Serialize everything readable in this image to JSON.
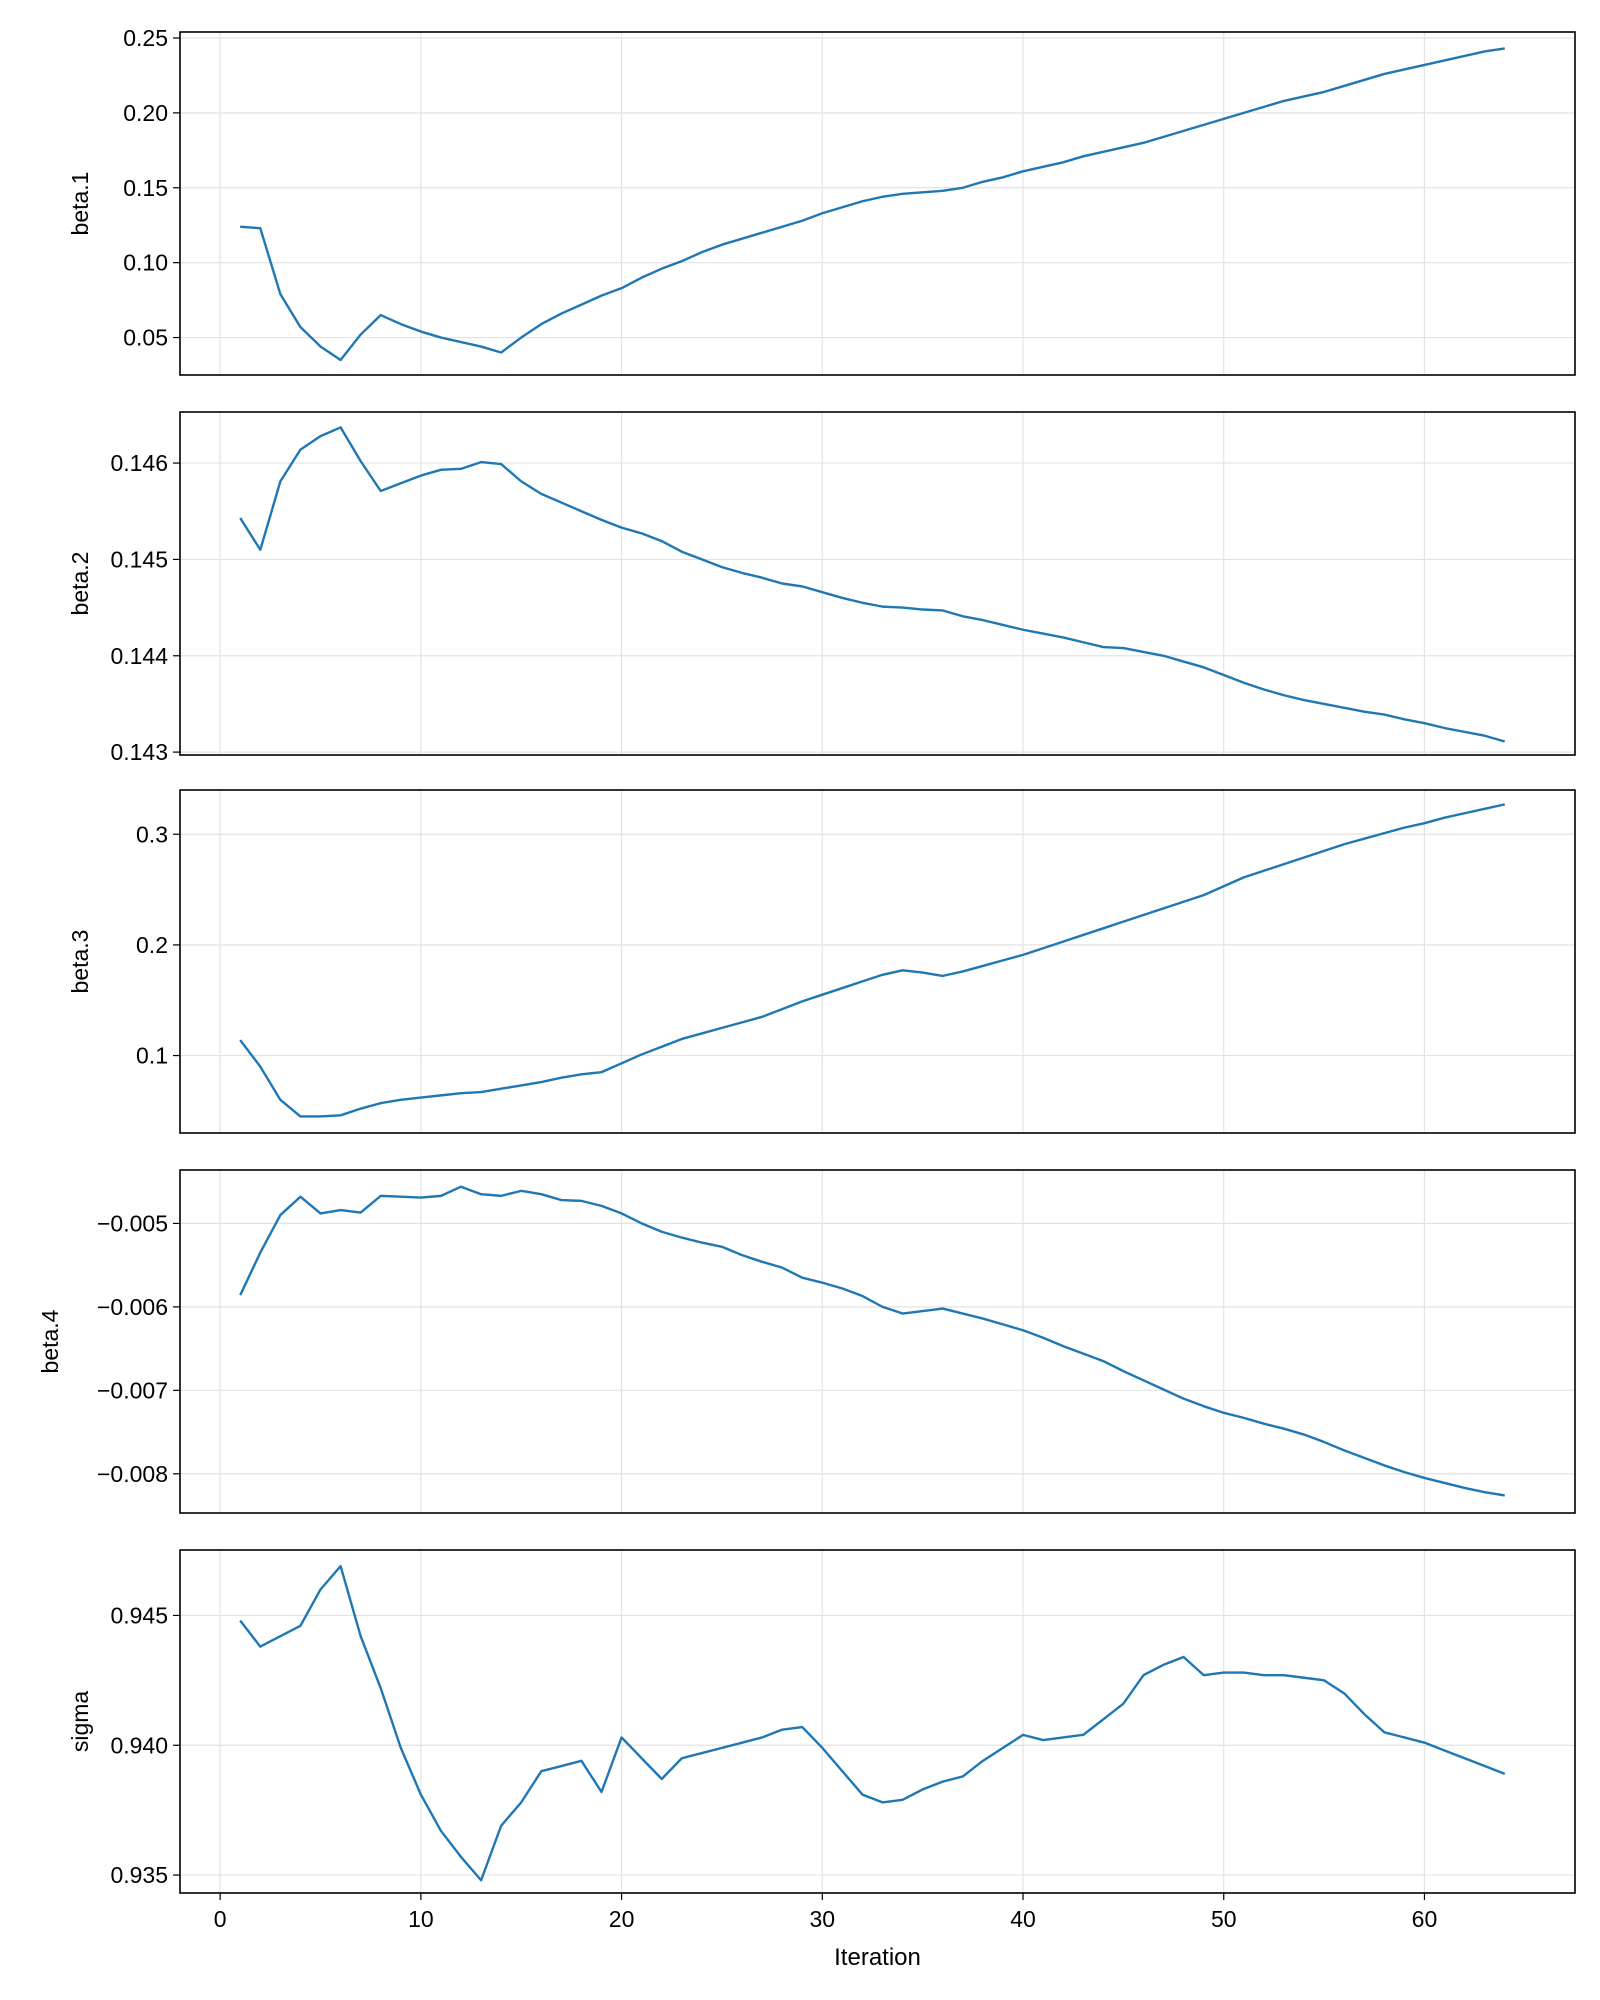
{
  "colors": {
    "line": "#1f77b4",
    "grid": "#e3e3e3",
    "frame": "#000000"
  },
  "chart_data": [
    {
      "type": "line",
      "ylabel": "beta.1",
      "xlim": [
        -2,
        67.5
      ],
      "ylim": [
        0.025,
        0.254
      ],
      "yticks": [
        0.05,
        0.1,
        0.15,
        0.2,
        0.25
      ],
      "ytick_labels": [
        "0.05",
        "0.10",
        "0.15",
        "0.20",
        "0.25"
      ],
      "series": [
        {
          "values": [
            0.124,
            0.123,
            0.079,
            0.057,
            0.044,
            0.035,
            0.052,
            0.065,
            0.059,
            0.054,
            0.05,
            0.047,
            0.044,
            0.04,
            0.05,
            0.059,
            0.066,
            0.072,
            0.078,
            0.083,
            0.09,
            0.096,
            0.101,
            0.107,
            0.112,
            0.116,
            0.12,
            0.124,
            0.128,
            0.133,
            0.137,
            0.141,
            0.144,
            0.146,
            0.147,
            0.148,
            0.15,
            0.154,
            0.157,
            0.161,
            0.164,
            0.167,
            0.171,
            0.174,
            0.177,
            0.18,
            0.184,
            0.188,
            0.192,
            0.196,
            0.2,
            0.204,
            0.208,
            0.211,
            0.214,
            0.218,
            0.222,
            0.226,
            0.229,
            0.232,
            0.235,
            0.238,
            0.241,
            0.243
          ]
        }
      ]
    },
    {
      "type": "line",
      "ylabel": "beta.2",
      "xlim": [
        -2,
        67.5
      ],
      "ylim": [
        0.14297,
        0.14653
      ],
      "yticks": [
        0.143,
        0.144,
        0.145,
        0.146
      ],
      "ytick_labels": [
        "0.143",
        "0.144",
        "0.145",
        "0.146"
      ],
      "series": [
        {
          "values": [
            0.14543,
            0.1451,
            0.14581,
            0.14614,
            0.14628,
            0.14637,
            0.14602,
            0.14571,
            0.14579,
            0.14587,
            0.14593,
            0.14594,
            0.14601,
            0.14599,
            0.14581,
            0.14568,
            0.14559,
            0.1455,
            0.14541,
            0.14533,
            0.14527,
            0.14519,
            0.14508,
            0.145,
            0.14492,
            0.14486,
            0.14481,
            0.14475,
            0.14472,
            0.14466,
            0.1446,
            0.14455,
            0.14451,
            0.1445,
            0.14448,
            0.14447,
            0.14441,
            0.14437,
            0.14432,
            0.14427,
            0.14423,
            0.14419,
            0.14414,
            0.14409,
            0.14408,
            0.14404,
            0.144,
            0.14394,
            0.14388,
            0.1438,
            0.14372,
            0.14365,
            0.14359,
            0.14354,
            0.1435,
            0.14346,
            0.14342,
            0.14339,
            0.14334,
            0.1433,
            0.14325,
            0.14321,
            0.14317,
            0.14311
          ]
        }
      ]
    },
    {
      "type": "line",
      "ylabel": "beta.3",
      "xlim": [
        -2,
        67.5
      ],
      "ylim": [
        0.03,
        0.34
      ],
      "yticks": [
        0.1,
        0.2,
        0.3
      ],
      "ytick_labels": [
        "0.1",
        "0.2",
        "0.3"
      ],
      "series": [
        {
          "values": [
            0.114,
            0.09,
            0.06,
            0.045,
            0.045,
            0.046,
            0.052,
            0.057,
            0.06,
            0.062,
            0.064,
            0.066,
            0.067,
            0.07,
            0.073,
            0.076,
            0.08,
            0.083,
            0.085,
            0.093,
            0.101,
            0.108,
            0.115,
            0.12,
            0.125,
            0.13,
            0.135,
            0.142,
            0.149,
            0.155,
            0.161,
            0.167,
            0.173,
            0.177,
            0.175,
            0.172,
            0.176,
            0.181,
            0.186,
            0.191,
            0.197,
            0.203,
            0.209,
            0.215,
            0.221,
            0.227,
            0.233,
            0.239,
            0.245,
            0.253,
            0.261,
            0.267,
            0.273,
            0.279,
            0.285,
            0.291,
            0.296,
            0.301,
            0.306,
            0.31,
            0.315,
            0.319,
            0.323,
            0.327
          ]
        }
      ]
    },
    {
      "type": "line",
      "ylabel": "beta.4",
      "xlim": [
        -2,
        67.5
      ],
      "ylim": [
        -0.00847,
        -0.00436
      ],
      "yticks": [
        -0.008,
        -0.007,
        -0.006,
        -0.005
      ],
      "ytick_labels": [
        "−0.008",
        "−0.007",
        "−0.006",
        "−0.005"
      ],
      "series": [
        {
          "values": [
            -0.00586,
            -0.00535,
            -0.0049,
            -0.00468,
            -0.00488,
            -0.00484,
            -0.00487,
            -0.00467,
            -0.00468,
            -0.00469,
            -0.00467,
            -0.00456,
            -0.00465,
            -0.00467,
            -0.00461,
            -0.00465,
            -0.00472,
            -0.00473,
            -0.00479,
            -0.00488,
            -0.005,
            -0.0051,
            -0.00517,
            -0.00523,
            -0.00528,
            -0.00538,
            -0.00546,
            -0.00553,
            -0.00565,
            -0.00571,
            -0.00578,
            -0.00587,
            -0.006,
            -0.00608,
            -0.00605,
            -0.00602,
            -0.00608,
            -0.00614,
            -0.00621,
            -0.00628,
            -0.00637,
            -0.00647,
            -0.00656,
            -0.00665,
            -0.00677,
            -0.00688,
            -0.00699,
            -0.0071,
            -0.00719,
            -0.00727,
            -0.00733,
            -0.0074,
            -0.00746,
            -0.00753,
            -0.00762,
            -0.00772,
            -0.00781,
            -0.0079,
            -0.00798,
            -0.00805,
            -0.00811,
            -0.00817,
            -0.00822,
            -0.00826
          ]
        }
      ]
    },
    {
      "type": "line",
      "ylabel": "sigma",
      "xlim": [
        -2,
        67.5
      ],
      "ylim": [
        0.93431,
        0.94752
      ],
      "yticks": [
        0.935,
        0.94,
        0.945
      ],
      "ytick_labels": [
        "0.935",
        "0.940",
        "0.945"
      ],
      "xticks": [
        0,
        10,
        20,
        30,
        40,
        50,
        60
      ],
      "xtick_labels": [
        "0",
        "10",
        "20",
        "30",
        "40",
        "50",
        "60"
      ],
      "xlabel": "Iteration",
      "series": [
        {
          "values": [
            0.9448,
            0.9438,
            0.9442,
            0.9446,
            0.946,
            0.9469,
            0.9442,
            0.9422,
            0.9399,
            0.9381,
            0.9367,
            0.9357,
            0.9348,
            0.9369,
            0.9378,
            0.939,
            0.9392,
            0.9394,
            0.9382,
            0.9403,
            0.9395,
            0.9387,
            0.9395,
            0.9397,
            0.9399,
            0.9401,
            0.9403,
            0.9406,
            0.9407,
            0.9399,
            0.939,
            0.9381,
            0.9378,
            0.9379,
            0.9383,
            0.9386,
            0.9388,
            0.9394,
            0.9399,
            0.9404,
            0.9402,
            0.9403,
            0.9404,
            0.941,
            0.9416,
            0.9427,
            0.9431,
            0.9434,
            0.9427,
            0.9428,
            0.9428,
            0.9427,
            0.9427,
            0.9426,
            0.9425,
            0.942,
            0.9412,
            0.9405,
            0.9403,
            0.9401,
            0.9398,
            0.9395,
            0.9392,
            0.9389
          ]
        }
      ]
    }
  ]
}
